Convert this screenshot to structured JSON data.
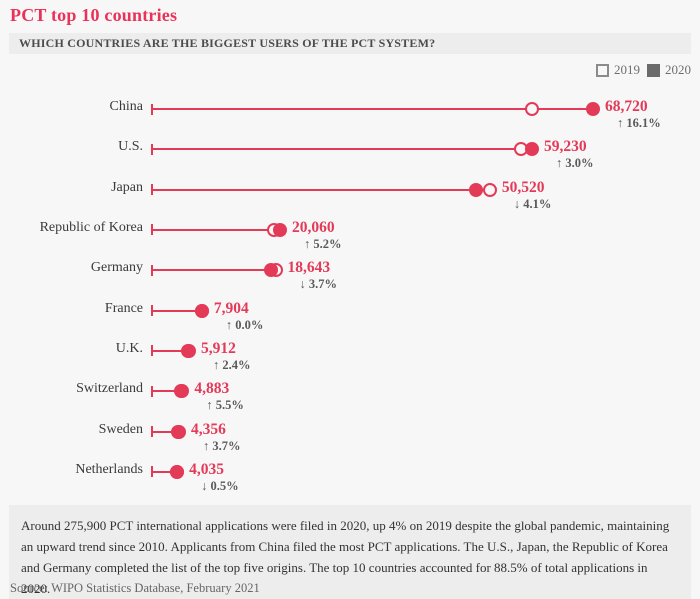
{
  "title": "PCT top 10 countries",
  "question": "WHICH COUNTRIES ARE THE BIGGEST USERS OF THE PCT SYSTEM?",
  "legend": {
    "year_2019_label": "2019",
    "year_2020_label": "2020"
  },
  "colors": {
    "accent": "#e33a58",
    "title": "#ea3259",
    "page_bg": "#f7f7f7",
    "panel_bg": "#ededed",
    "change_text": "#595959",
    "legend_gray": "#6b6b6b"
  },
  "chart_data": {
    "type": "dumbbell",
    "series": [
      "2019",
      "2020"
    ],
    "legend_position": "top-right",
    "axis_max": 68720,
    "note": "open circle = 2019 (unlabeled, estimated from % change), filled circle = 2020 (labeled)",
    "countries": [
      {
        "name": "China",
        "value_2020": 68720,
        "value_2020_label": "68,720",
        "value_2019_est": 59190,
        "change_pct": "16.1%",
        "direction": "up"
      },
      {
        "name": "U.S.",
        "value_2020": 59230,
        "value_2020_label": "59,230",
        "value_2019_est": 57505,
        "change_pct": "3.0%",
        "direction": "up"
      },
      {
        "name": "Japan",
        "value_2020": 50520,
        "value_2020_label": "50,520",
        "value_2019_est": 52680,
        "change_pct": "4.1%",
        "direction": "down"
      },
      {
        "name": "Republic of Korea",
        "value_2020": 20060,
        "value_2020_label": "20,060",
        "value_2019_est": 19068,
        "change_pct": "5.2%",
        "direction": "up"
      },
      {
        "name": "Germany",
        "value_2020": 18643,
        "value_2020_label": "18,643",
        "value_2019_est": 19359,
        "change_pct": "3.7%",
        "direction": "down"
      },
      {
        "name": "France",
        "value_2020": 7904,
        "value_2020_label": "7,904",
        "value_2019_est": 7904,
        "change_pct": "0.0%",
        "direction": "up"
      },
      {
        "name": "U.K.",
        "value_2020": 5912,
        "value_2020_label": "5,912",
        "value_2019_est": 5773,
        "change_pct": "2.4%",
        "direction": "up"
      },
      {
        "name": "Switzerland",
        "value_2020": 4883,
        "value_2020_label": "4,883",
        "value_2019_est": 4628,
        "change_pct": "5.5%",
        "direction": "up"
      },
      {
        "name": "Sweden",
        "value_2020": 4356,
        "value_2020_label": "4,356",
        "value_2019_est": 4201,
        "change_pct": "3.7%",
        "direction": "up"
      },
      {
        "name": "Netherlands",
        "value_2020": 4035,
        "value_2020_label": "4,035",
        "value_2019_est": 4055,
        "change_pct": "0.5%",
        "direction": "down"
      }
    ],
    "arrow_up": "↑",
    "arrow_down": "↓"
  },
  "footer": {
    "text": "Around 275,900 PCT international applications were filed in 2020, up 4% on 2019 despite the global pandemic, maintaining an upward trend since 2010. Applicants from China filed the most PCT applications. The U.S., Japan, the Republic of Korea and Germany completed the list of the top five origins. The top 10 countries accounted for 88.5% of total applications in 2020."
  },
  "source": "Source: WIPO Statistics Database, February 2021"
}
